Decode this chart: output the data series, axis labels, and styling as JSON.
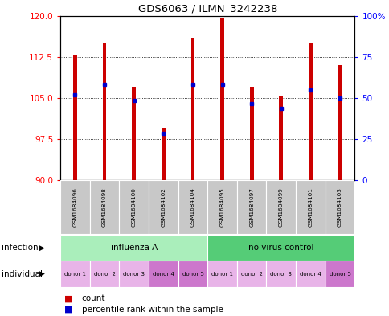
{
  "title": "GDS6063 / ILMN_3242238",
  "samples": [
    "GSM1684096",
    "GSM1684098",
    "GSM1684100",
    "GSM1684102",
    "GSM1684104",
    "GSM1684095",
    "GSM1684097",
    "GSM1684099",
    "GSM1684101",
    "GSM1684103"
  ],
  "bar_tops": [
    112.7,
    115.0,
    107.0,
    99.5,
    116.0,
    119.5,
    107.0,
    105.2,
    115.0,
    111.0
  ],
  "bar_bottom": 90,
  "blue_markers": [
    105.5,
    107.5,
    104.5,
    98.5,
    107.5,
    107.5,
    104.0,
    103.0,
    106.5,
    105.0
  ],
  "ylim_left": [
    90,
    120
  ],
  "ylim_right": [
    0,
    100
  ],
  "yticks_left": [
    90,
    97.5,
    105,
    112.5,
    120
  ],
  "yticks_right": [
    0,
    25,
    50,
    75,
    100
  ],
  "bar_color": "#cc0000",
  "blue_color": "#0000cc",
  "infection_groups": [
    {
      "label": "influenza A",
      "start": 0,
      "end": 5,
      "color": "#aaeebb"
    },
    {
      "label": "no virus control",
      "start": 5,
      "end": 10,
      "color": "#55cc77"
    }
  ],
  "individual_labels": [
    "donor 1",
    "donor 2",
    "donor 3",
    "donor 4",
    "donor 5",
    "donor 1",
    "donor 2",
    "donor 3",
    "donor 4",
    "donor 5"
  ],
  "individual_colors": [
    "#e8b4e8",
    "#e8b4e8",
    "#e8b4e8",
    "#cc77cc",
    "#cc77cc",
    "#e8b4e8",
    "#e8b4e8",
    "#e8b4e8",
    "#e8b4e8",
    "#cc77cc"
  ],
  "legend_count_color": "#cc0000",
  "legend_percentile_color": "#0000cc",
  "bar_width": 0.13
}
